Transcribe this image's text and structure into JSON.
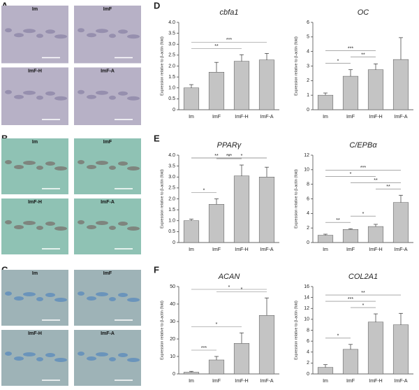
{
  "panels": [
    {
      "letter": "A",
      "images": [
        "Im",
        "ImF",
        "ImF-H",
        "ImF-A"
      ]
    },
    {
      "letter": "B",
      "images": [
        "Im",
        "ImF",
        "ImF-H",
        "ImF-A"
      ]
    },
    {
      "letter": "C",
      "images": [
        "Im",
        "ImF",
        "ImF-H",
        "ImF-A"
      ]
    },
    {
      "letter": "D"
    },
    {
      "letter": "E"
    },
    {
      "letter": "F"
    }
  ],
  "chart_data": [
    {
      "type": "bar",
      "title": "cbfa1",
      "y_label": "Expression relative to β-actin (fold)",
      "categories": [
        "Im",
        "ImF",
        "ImF-H",
        "ImF-A"
      ],
      "values": [
        1.0,
        1.72,
        2.22,
        2.28
      ],
      "errors": [
        0.15,
        0.45,
        0.3,
        0.3
      ],
      "color": "#c4c4c4",
      "ylim": [
        0,
        4
      ],
      "yticks": [
        0,
        {
          "value": 0.5,
          "label": "0.5"
        },
        {
          "value": 1,
          "label": "1.0"
        },
        {
          "value": 1.5,
          "label": "1.5"
        },
        {
          "value": 2,
          "label": "2.0"
        },
        {
          "value": 2.5,
          "label": "2.5"
        },
        {
          "value": 3,
          "label": "3.0"
        },
        {
          "value": 3.5,
          "label": "3.5"
        },
        {
          "value": 4,
          "label": "4.0"
        }
      ],
      "significance": [
        {
          "from": 0,
          "to": 2,
          "label": "**"
        },
        {
          "from": 0,
          "to": 3,
          "label": "***"
        }
      ]
    },
    {
      "type": "bar",
      "title": "OC",
      "y_label": "Expression relative to β-actin (fold)",
      "categories": [
        "Im",
        "ImF",
        "ImF-H",
        "ImF-A"
      ],
      "values": [
        1.0,
        2.3,
        2.75,
        3.45
      ],
      "errors": [
        0.15,
        0.45,
        0.4,
        1.5
      ],
      "color": "#c4c4c4",
      "ylim": [
        0,
        6
      ],
      "yticks": [
        0,
        1,
        2,
        3,
        4,
        5,
        6
      ],
      "significance": [
        {
          "from": 0,
          "to": 1,
          "label": "*"
        },
        {
          "from": 1,
          "to": 2,
          "label": "**"
        },
        {
          "from": 0,
          "to": 2,
          "label": "***"
        }
      ]
    },
    {
      "type": "bar",
      "title": "PPARγ",
      "y_label": "Expression relative to β-actin (fold)",
      "categories": [
        "Im",
        "ImF",
        "ImF-H",
        "ImF-A"
      ],
      "values": [
        1.0,
        1.75,
        3.05,
        3.0
      ],
      "errors": [
        0.07,
        0.25,
        0.5,
        0.45
      ],
      "color": "#c4c4c4",
      "ylim": [
        0,
        4
      ],
      "yticks": [
        0,
        {
          "value": 0.5,
          "label": "0.5"
        },
        {
          "value": 1,
          "label": "1.0"
        },
        {
          "value": 1.5,
          "label": "1.5"
        },
        {
          "value": 2,
          "label": "2.0"
        },
        {
          "value": 2.5,
          "label": "2.5"
        },
        {
          "value": 3,
          "label": "3.0"
        },
        {
          "value": 3.5,
          "label": "3.5"
        },
        {
          "value": 4,
          "label": "4.0"
        }
      ],
      "significance": [
        {
          "from": 0,
          "to": 1,
          "label": "*"
        },
        {
          "from": 1,
          "to": 2,
          "label": "*"
        },
        {
          "from": 1,
          "to": 3,
          "label": "*"
        },
        {
          "from": 0,
          "to": 2,
          "label": "**"
        },
        {
          "from": 0,
          "to": 3,
          "label": "***"
        }
      ]
    },
    {
      "type": "bar",
      "title": "C/EPBα",
      "y_label": "Expression relative to β-actin (fold)",
      "categories": [
        "Im",
        "ImF",
        "ImF-H",
        "ImF-A"
      ],
      "values": [
        1.0,
        1.8,
        2.2,
        5.5
      ],
      "errors": [
        0.15,
        0.1,
        0.3,
        1.0
      ],
      "color": "#c4c4c4",
      "ylim": [
        0,
        12
      ],
      "yticks": [
        0,
        2,
        4,
        6,
        8,
        10,
        12
      ],
      "significance": [
        {
          "from": 0,
          "to": 1,
          "label": "**"
        },
        {
          "from": 1,
          "to": 2,
          "label": "*"
        },
        {
          "from": 2,
          "to": 3,
          "label": "**"
        },
        {
          "from": 1,
          "to": 3,
          "label": "**"
        },
        {
          "from": 0,
          "to": 2,
          "label": "*"
        },
        {
          "from": 0,
          "to": 3,
          "label": "***"
        }
      ]
    },
    {
      "type": "bar",
      "title": "ACAN",
      "y_label": "Expression relative to β-actin (fold)",
      "categories": [
        "Im",
        "ImF",
        "ImF-H",
        "ImF-A"
      ],
      "values": [
        1.0,
        8.0,
        17.5,
        33.5
      ],
      "errors": [
        0.5,
        2.0,
        6.0,
        10.0
      ],
      "color": "#c4c4c4",
      "ylim": [
        0,
        50
      ],
      "yticks": [
        0,
        10,
        20,
        30,
        40,
        50
      ],
      "significance": [
        {
          "from": 0,
          "to": 1,
          "label": "***"
        },
        {
          "from": 0,
          "to": 2,
          "label": "*"
        },
        {
          "from": 1,
          "to": 3,
          "label": "*"
        },
        {
          "from": 0,
          "to": 3,
          "label": "*"
        }
      ]
    },
    {
      "type": "bar",
      "title": "COL2A1",
      "y_label": "Expression relative to β-actin (fold)",
      "categories": [
        "Im",
        "ImF",
        "ImF-H",
        "ImF-A"
      ],
      "values": [
        1.2,
        4.5,
        9.5,
        9.0
      ],
      "errors": [
        0.5,
        0.9,
        1.5,
        2.1
      ],
      "color": "#c4c4c4",
      "ylim": [
        0,
        16
      ],
      "yticks": [
        0,
        2,
        4,
        6,
        8,
        10,
        12,
        14,
        16
      ],
      "significance": [
        {
          "from": 0,
          "to": 1,
          "label": "*"
        },
        {
          "from": 1,
          "to": 2,
          "label": "*"
        },
        {
          "from": 0,
          "to": 2,
          "label": "***"
        },
        {
          "from": 0,
          "to": 3,
          "label": "**"
        }
      ]
    }
  ]
}
